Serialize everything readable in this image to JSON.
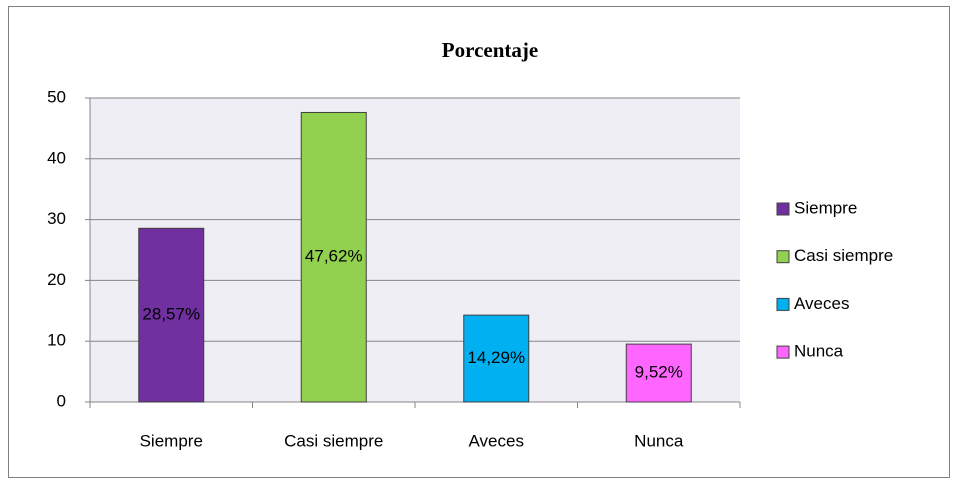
{
  "chart_data": {
    "type": "bar",
    "title": "Porcentaje",
    "categories": [
      "Siempre",
      "Casi siempre",
      "Aveces",
      "Nunca"
    ],
    "values": [
      28.57,
      47.62,
      14.29,
      9.52
    ],
    "value_labels": [
      "28,57%",
      "47,62%",
      "14,29%",
      "9,52%"
    ],
    "colors": [
      "#7030a0",
      "#92d050",
      "#00b0f0",
      "#ff66ff"
    ],
    "ylim": [
      0,
      50
    ],
    "yticks": [
      0,
      10,
      20,
      30,
      40,
      50
    ],
    "grid": true,
    "legend": "right"
  }
}
